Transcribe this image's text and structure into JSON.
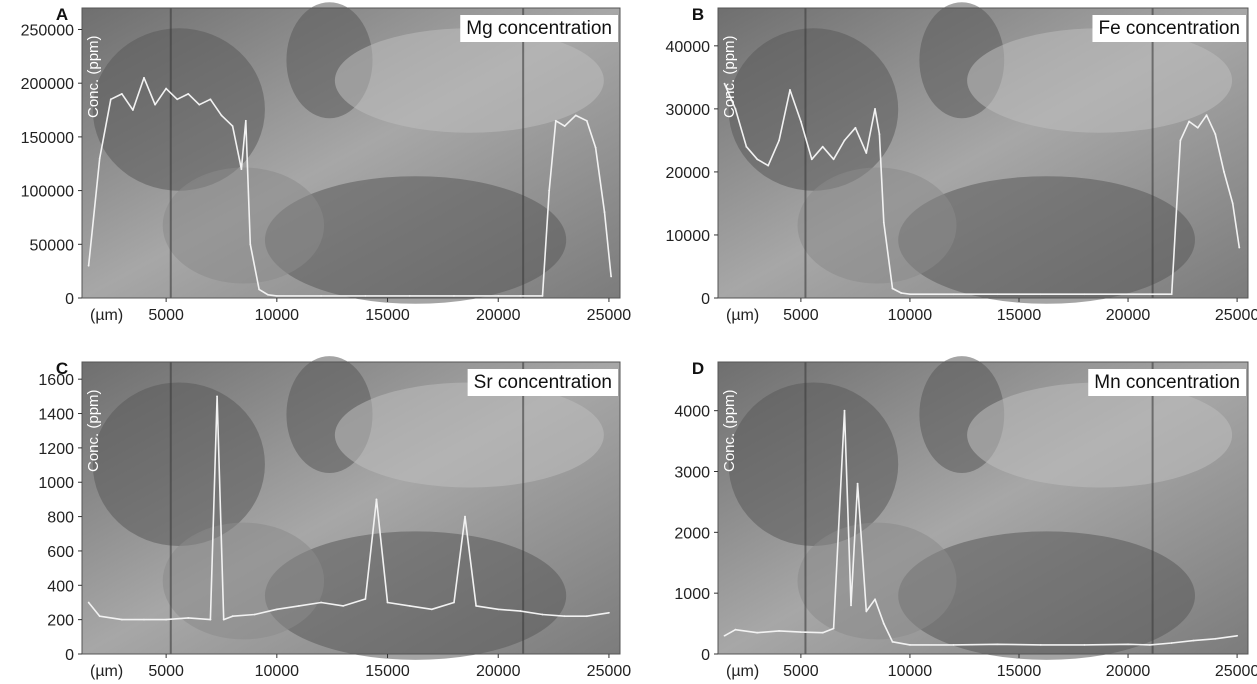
{
  "figure": {
    "colors": {
      "trace": "#f2f2f2",
      "background_dark": "#5a5a5a",
      "background_mid": "#8a8a8a",
      "background_light": "#bdbdbd",
      "title_box": "#ffffff"
    }
  },
  "chart_data": [
    {
      "panel": "A",
      "type": "line",
      "title": "Mg concentration",
      "ylabel": "Conc. (ppm)",
      "xunit": "(µm)",
      "xticks": [
        5000,
        10000,
        15000,
        20000,
        25000
      ],
      "yticks": [
        0,
        50000,
        100000,
        150000,
        200000,
        250000
      ],
      "xlim": [
        1200,
        25500
      ],
      "ylim": [
        0,
        270000
      ],
      "grid": false,
      "series": [
        {
          "x": [
            1500,
            2000,
            2500,
            3000,
            3500,
            4000,
            4500,
            5000,
            5500,
            6000,
            6500,
            7000,
            7500,
            8000,
            8400,
            8600,
            8800,
            9200,
            9600,
            10000,
            12000,
            14000,
            16000,
            18000,
            20000,
            21000,
            22000,
            22300,
            22600,
            23000,
            23500,
            24000,
            24400,
            24800,
            25100
          ],
          "y": [
            30000,
            130000,
            185000,
            190000,
            175000,
            205000,
            180000,
            195000,
            185000,
            190000,
            180000,
            185000,
            170000,
            160000,
            120000,
            165000,
            50000,
            8000,
            3000,
            2000,
            2000,
            2000,
            2000,
            2000,
            2000,
            2000,
            2000,
            100000,
            165000,
            160000,
            170000,
            165000,
            140000,
            80000,
            20000
          ]
        }
      ]
    },
    {
      "panel": "B",
      "type": "line",
      "title": "Fe concentration",
      "ylabel": "Conc. (ppm)",
      "xunit": "(µm)",
      "xticks": [
        5000,
        10000,
        15000,
        20000,
        25000
      ],
      "yticks": [
        0,
        10000,
        20000,
        30000,
        40000
      ],
      "xlim": [
        1200,
        25500
      ],
      "ylim": [
        0,
        46000
      ],
      "grid": false,
      "series": [
        {
          "x": [
            1500,
            2000,
            2500,
            3000,
            3500,
            4000,
            4500,
            5000,
            5500,
            6000,
            6500,
            7000,
            7500,
            8000,
            8400,
            8600,
            8800,
            9200,
            9600,
            10000,
            12000,
            14000,
            15000,
            16000,
            18000,
            20000,
            21000,
            22000,
            22400,
            22800,
            23200,
            23600,
            24000,
            24400,
            24800,
            25100
          ],
          "y": [
            34000,
            30000,
            24000,
            22000,
            21000,
            25000,
            33000,
            28000,
            22000,
            24000,
            22000,
            25000,
            27000,
            23000,
            30000,
            26000,
            12000,
            1500,
            800,
            600,
            600,
            600,
            600,
            600,
            600,
            600,
            600,
            600,
            25000,
            28000,
            27000,
            29000,
            26000,
            20000,
            15000,
            8000
          ]
        }
      ]
    },
    {
      "panel": "C",
      "type": "line",
      "title": "Sr concentration",
      "ylabel": "Conc. (ppm)",
      "xunit": "(µm)",
      "xticks": [
        5000,
        10000,
        15000,
        20000,
        25000
      ],
      "yticks": [
        0,
        200,
        400,
        600,
        800,
        1000,
        1200,
        1400,
        1600
      ],
      "xlim": [
        1200,
        25500
      ],
      "ylim": [
        0,
        1700
      ],
      "grid": false,
      "series": [
        {
          "x": [
            1500,
            2000,
            3000,
            4000,
            5000,
            6000,
            7000,
            7300,
            7600,
            8000,
            9000,
            10000,
            11000,
            12000,
            13000,
            14000,
            14500,
            15000,
            16000,
            17000,
            18000,
            18500,
            19000,
            20000,
            21000,
            22000,
            23000,
            24000,
            25000
          ],
          "y": [
            300,
            220,
            200,
            200,
            200,
            210,
            200,
            1500,
            200,
            220,
            230,
            260,
            280,
            300,
            280,
            320,
            900,
            300,
            280,
            260,
            300,
            800,
            280,
            260,
            250,
            230,
            220,
            220,
            240
          ]
        }
      ]
    },
    {
      "panel": "D",
      "type": "line",
      "title": "Mn concentration",
      "ylabel": "Conc. (ppm)",
      "xunit": "(µm)",
      "xticks": [
        5000,
        10000,
        15000,
        20000,
        25000
      ],
      "yticks": [
        0,
        1000,
        2000,
        3000,
        4000
      ],
      "xlim": [
        1200,
        25500
      ],
      "ylim": [
        0,
        4800
      ],
      "grid": false,
      "series": [
        {
          "x": [
            1500,
            2000,
            3000,
            4000,
            5000,
            6000,
            6500,
            7000,
            7300,
            7600,
            8000,
            8400,
            8800,
            9200,
            10000,
            12000,
            14000,
            16000,
            18000,
            20000,
            21000,
            22000,
            23000,
            24000,
            25000
          ],
          "y": [
            300,
            400,
            350,
            380,
            360,
            350,
            420,
            4000,
            800,
            2800,
            700,
            900,
            500,
            200,
            150,
            150,
            160,
            150,
            150,
            160,
            150,
            180,
            220,
            250,
            300
          ]
        }
      ]
    }
  ]
}
